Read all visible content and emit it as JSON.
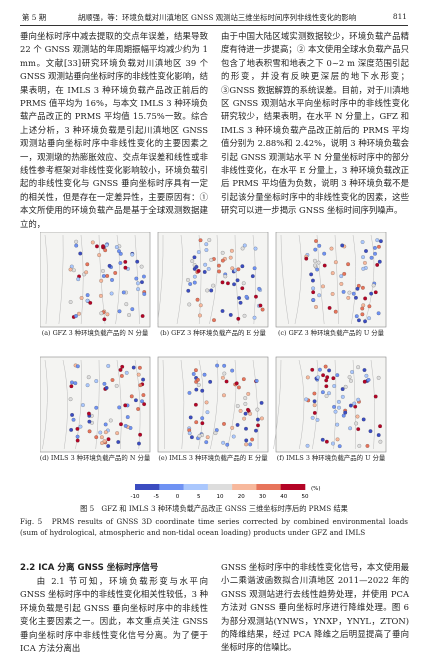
{
  "header": {
    "issue": "第 5 期",
    "running_title": "胡顺强，等：环境负载对川滇地区 GNSS 观测站三维坐标时间序列非线性变化的影响",
    "page_number": "811"
  },
  "body": {
    "left_top": "垂向坐标时序中减去提取的交点年误差，结果导致 22 个 GNSS 观测站的年周期振幅平均减少约为 1 mm。文献[33]研究环境负载对川滇地区 39 个 GNSS 观测站垂向坐标时序的非线性变化影响，结果表明，在 IMLS 3 种环境负载产品改正前后的 PRMS 值平均为 16%，与本文 IMLS 3 种环境负载产品改正的 PRMS 平均值 15.75%一致。综合上述分析，3 种环境负载是引起川滇地区 GNSS 观测站垂向坐标时序中非线性变化的主要因素之一，观测墩的热膨胀效应、交点年误差和线性或非线性参考框架对非线性变化影响较小，环境负载引起的非线性变化与 GNSS 垂向坐标时序具有一定的相关性，但是存在一定差异性，主要原因有：① 本文所使用的环境负载产品是基于全球观测数据建立的，",
    "right_top": "由于中国大陆区域实测数据较少，环境负载产品精度有待进一步提高；② 本文使用全球水负载产品只包含了地表积雪和地表之下 0~2 m 深度范围引起的形变，并没有反映更深层的地下水形变；③GNSS 数据解算的系统误差。目前，对于川滇地区 GNSS 观测站水平向坐标时序中的非线性变化研究较少，结果表明，在水平 N 分量上，GFZ 和 IMLS 3 种环境负载产品改正前后的 PRMS 平均值分别为 2.88%和 2.42%，说明 3 种环境负载会引起 GNSS 观测站水平 N 分量坐标时序中的部分非线性变化，在水平 E 分量上，3 种环境负载改正后 PRMS 平均值为负数，说明 3 种环境负载不是引起该分量坐标时序中的非线性变化的因素，这些研究可以进一步揭示 GNSS 坐标时间序列噪声。",
    "section_title": "2.2  ICA 分离 GNSS 坐标时序信号",
    "left_bottom": "由 2.1 节可知，环境负载形变与水平向 GNSS 坐标时序中的非线性变化相关性较低，3 种环境负载是引起 GNSS 垂向坐标时序中的非线性变化主要因素之一。因此，本文重点关注 GNSS 垂向坐标时序中非线性变化信号分离。为了便于 ICA 方法分离出",
    "right_bottom": "GNSS 坐标时序中的非线性变化信号，本文使用最小二乘谐波函数拟合川滇地区 2011—2022 年的 GNSS 观测站进行去线性趋势处理，并使用 PCA 方法对 GNSS 垂向坐标时序进行降维处理。图 6 为部分观测站(YNWS，YNXP，YNYL，ZTON)的降维结果，经过 PCA 降维之后明显提高了垂向坐标时序的信噪比。"
  },
  "figure": {
    "panels": [
      "(a) GFZ 3 种环境负载产品的 N 分量",
      "(b) GFZ 3 种环境负载产品的 E 分量",
      "(c) GFZ 3 种环境负载产品的 U 分量",
      "(d) IMLS 3 种环境负载产品的 N 分量",
      "(e) IMLS 3 种环境负载产品的 E 分量",
      "(f) IMLS 3 种环境负载产品的 U 分量"
    ],
    "colorbar_ticks": [
      "-10",
      "-5",
      "0",
      "5",
      "10",
      "20",
      "30",
      "40",
      "50"
    ],
    "colorbar_unit": "(%)",
    "caption_cn": "图 5　GFZ 和 IMLS 3 种环境负载产品改正 GNSS 三维坐标时序后的 PRMS 结果",
    "caption_en": "Fig. 5　PRMS results of GNSS 3D coordinate time series corrected by combined environmental loads (sum of hydrological, atmospheric and non-tidal ocean loading) products under GFZ and IMLS"
  }
}
